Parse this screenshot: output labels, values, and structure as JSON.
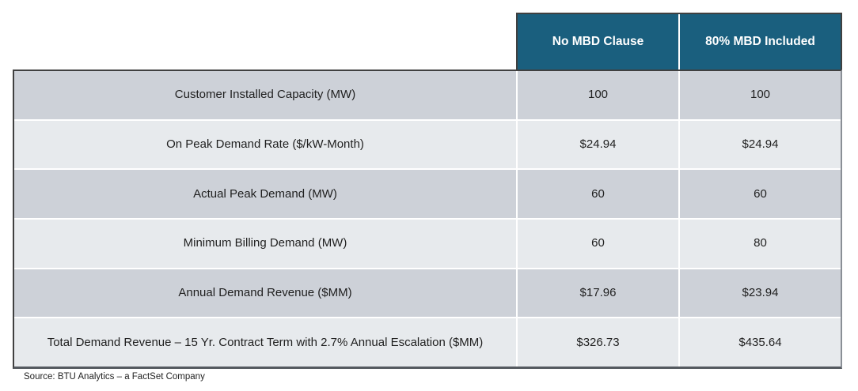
{
  "chart_data": {
    "type": "table",
    "column_headers": [
      "No MBD Clause",
      "80% MBD Included"
    ],
    "rows": [
      {
        "label": "Customer Installed Capacity (MW)",
        "values": [
          "100",
          "100"
        ]
      },
      {
        "label": "On Peak Demand Rate ($/kW-Month)",
        "values": [
          "$24.94",
          "$24.94"
        ]
      },
      {
        "label": "Actual Peak Demand (MW)",
        "values": [
          "60",
          "60"
        ]
      },
      {
        "label": "Minimum Billing Demand (MW)",
        "values": [
          "60",
          "80"
        ]
      },
      {
        "label": "Annual Demand Revenue ($MM)",
        "values": [
          "$17.96",
          "$23.94"
        ]
      },
      {
        "label": "Total Demand Revenue – 15 Yr. Contract Term with 2.7% Annual Escalation ($MM)",
        "values": [
          "$326.73",
          "$435.64"
        ]
      }
    ],
    "source": "Source: BTU Analytics – a FactSet Company",
    "colors": {
      "header_background": "#1a5f7e",
      "header_text": "#ffffff",
      "row_dark": "#cdd1d8",
      "row_light": "#e7eaed",
      "border_dark": "#404040",
      "body_text": "#1f1f1f"
    }
  }
}
